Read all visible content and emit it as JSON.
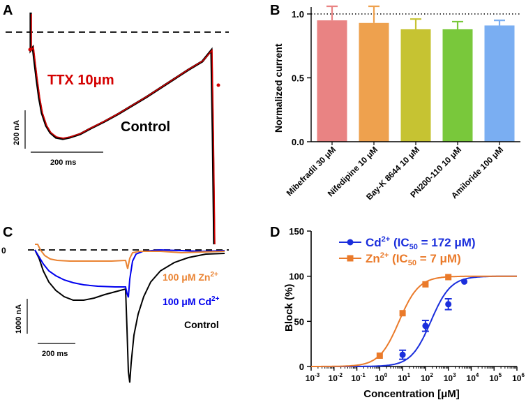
{
  "chart_data": [
    {
      "panel": "A",
      "type": "line",
      "series": [
        {
          "name": "TTX 10μm",
          "color": "#d40000"
        },
        {
          "name": "Control",
          "color": "#000000"
        }
      ],
      "scale_bars": {
        "current": "200 nA",
        "time": "200 ms"
      },
      "dashed_reference_line": true
    },
    {
      "panel": "B",
      "type": "bar",
      "ylabel": "Normalized current",
      "ylim": [
        0,
        1.05
      ],
      "yticks": [
        "0.0",
        "0.5",
        "1.0"
      ],
      "reference_line": 1.0,
      "categories": [
        "Mibefradil 30 μM",
        "Nifedipine 10 μM",
        "Bay-K 8644 10 μM",
        "PN200-110 10 μM",
        "Amiloride 100 μM"
      ],
      "values": [
        0.95,
        0.93,
        0.88,
        0.88,
        0.91
      ],
      "errors": [
        0.11,
        0.13,
        0.08,
        0.06,
        0.04
      ],
      "colors": [
        "#e98383",
        "#eea14e",
        "#c6c332",
        "#79c83b",
        "#7aaef2"
      ]
    },
    {
      "panel": "C",
      "type": "line",
      "zero_label": "0",
      "series": [
        {
          "name": "100 μM Zn²⁺",
          "color": "#ea8332"
        },
        {
          "name": "100 μM Cd²⁺",
          "color": "#0000ee"
        },
        {
          "name": "Control",
          "color": "#000000"
        }
      ],
      "scale_bars": {
        "current": "1000 nA",
        "time": "200 ms"
      }
    },
    {
      "panel": "D",
      "type": "scatter",
      "xlabel": "Concentration [μM]",
      "ylabel": "Block (%)",
      "xscale": "log",
      "xlim": [
        0.001,
        1000000
      ],
      "ylim": [
        0,
        150
      ],
      "yticks": [
        0,
        50,
        100,
        150
      ],
      "xtick_exponents": [
        -3,
        -2,
        -1,
        0,
        1,
        2,
        3,
        4,
        5,
        6
      ],
      "series": [
        {
          "name": "Cd²⁺ (IC₅₀ = 172 μM)",
          "color": "#1a2edc",
          "marker": "circle",
          "ic50": 172,
          "x": [
            10,
            100,
            1000,
            5000
          ],
          "y": [
            13,
            45,
            69,
            94
          ],
          "err": [
            5,
            6,
            6,
            0
          ]
        },
        {
          "name": "Zn²⁺ (IC₅₀ = 7 μM)",
          "color": "#ea7a2a",
          "marker": "square",
          "ic50": 7,
          "x": [
            1,
            10,
            100,
            1000
          ],
          "y": [
            12,
            59,
            91,
            99
          ],
          "err": [
            0,
            0,
            0,
            0
          ]
        }
      ]
    }
  ],
  "labels": {
    "panelA": "A",
    "panelB": "B",
    "panelC": "C",
    "panelD": "D",
    "a_ttx": "TTX 10μm",
    "a_control": "Control",
    "a_scale_y": "200 nA",
    "a_scale_x": "200 ms",
    "c_zero": "0",
    "c_zn": "100 μM Zn",
    "c_cd": "100 μM Cd",
    "c_sup": "2+",
    "c_control": "Control",
    "c_scale_y": "1000 nA",
    "c_scale_x": "200 ms",
    "d_xlabel": "Concentration [μM]",
    "d_ylabel": "Block (%)",
    "d_leg_cd_pre": "Cd",
    "d_leg_cd_mid": " (IC",
    "d_leg_cd_post": " = 172 μM)",
    "d_leg_zn_pre": "Zn",
    "d_leg_zn_mid": " (IC",
    "d_leg_zn_post": " = 7 μM)",
    "d_sub": "50",
    "d_sup": "2+"
  }
}
